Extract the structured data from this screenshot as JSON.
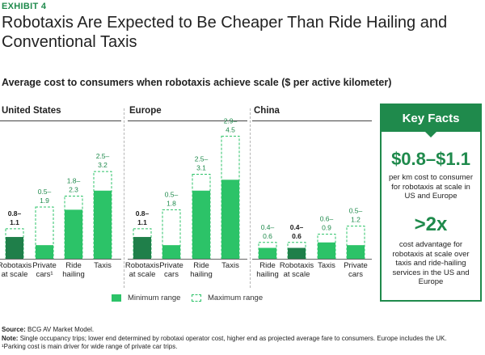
{
  "header": {
    "exhibit": "EXHIBIT 4",
    "title": "Robotaxis Are Expected to Be Cheaper Than Ride Hailing and Conventional Taxis",
    "subtitle": "Average cost to consumers when robotaxis achieve scale ($ per active kilometer)"
  },
  "chart_data": {
    "type": "bar",
    "title": "Average cost to consumers when robotaxis achieve scale ($ per active kilometer)",
    "ylabel": "$ per active kilometer",
    "ylim": [
      0,
      4.6
    ],
    "series": [
      {
        "name": "Minimum range"
      },
      {
        "name": "Maximum range"
      }
    ],
    "groups": [
      {
        "region": "United States",
        "bars": [
          {
            "category": "Robotaxis at scale",
            "min": 0.8,
            "max": 1.1,
            "label_top": "0.8–",
            "label_bottom": "1.1"
          },
          {
            "category": "Private cars¹",
            "min": 0.5,
            "max": 1.9,
            "label_top": "0.5–",
            "label_bottom": "1.9"
          },
          {
            "category": "Ride hailing",
            "min": 1.8,
            "max": 2.3,
            "label_top": "1.8–",
            "label_bottom": "2.3"
          },
          {
            "category": "Taxis",
            "min": 2.5,
            "max": 3.2,
            "label_top": "2.5–",
            "label_bottom": "3.2"
          }
        ]
      },
      {
        "region": "Europe",
        "bars": [
          {
            "category": "Robotaxis at scale",
            "min": 0.8,
            "max": 1.1,
            "label_top": "0.8–",
            "label_bottom": "1.1"
          },
          {
            "category": "Private cars",
            "min": 0.5,
            "max": 1.8,
            "label_top": "0.5–",
            "label_bottom": "1.8"
          },
          {
            "category": "Ride hailing",
            "min": 2.5,
            "max": 3.1,
            "label_top": "2.5–",
            "label_bottom": "3.1"
          },
          {
            "category": "Taxis",
            "min": 2.9,
            "max": 4.5,
            "label_top": "2.9–",
            "label_bottom": "4.5"
          }
        ]
      },
      {
        "region": "China",
        "bars": [
          {
            "category": "Ride hailing",
            "min": 0.4,
            "max": 0.6,
            "label_top": "0.4–",
            "label_bottom": "0.6"
          },
          {
            "category": "Robotaxis at scale",
            "min": 0.4,
            "max": 0.6,
            "label_top": "0.4–",
            "label_bottom": "0.6"
          },
          {
            "category": "Taxis",
            "min": 0.6,
            "max": 0.9,
            "label_top": "0.6–",
            "label_bottom": "0.9"
          },
          {
            "category": "Private cars",
            "min": 0.5,
            "max": 1.2,
            "label_top": "0.5–",
            "label_bottom": "1.2"
          }
        ]
      }
    ],
    "labels": {
      "us": [
        "Robotaxis\nat scale",
        "Private\ncars¹",
        "Ride\nhailing",
        "Taxis"
      ],
      "eu": [
        "Robotaxis\nat scale",
        "Private\ncars",
        "Ride\nhailing",
        "Taxis"
      ],
      "cn": [
        "Ride\nhailing",
        "Robotaxis\nat scale",
        "Taxis",
        "Private\ncars"
      ]
    }
  },
  "legend": {
    "min_label": "Minimum range",
    "max_label": "Maximum range"
  },
  "colors": {
    "bar_dark": "#1f7f4a",
    "bar": "#2cc368",
    "accent": "#1f8a4c"
  },
  "key_facts": {
    "heading": "Key Facts",
    "fact1_value": "$0.8–$1.1",
    "fact1_text": "per km cost to consumer for robotaxis at scale in US and Europe",
    "fact2_value": ">2x",
    "fact2_text": "cost advantage for robotaxis at scale over taxis and ride-hailing services in the US and Europe"
  },
  "source": {
    "source_label": "Source:",
    "source_text": "BCG AV Market Model.",
    "note_label": "Note:",
    "note_text": "Single occupancy trips; lower end determined by robotaxi operator cost, higher end as projected average fare to consumers. Europe includes the UK.",
    "footnote": "¹Parking cost is main driver for wide range of private car trips."
  }
}
